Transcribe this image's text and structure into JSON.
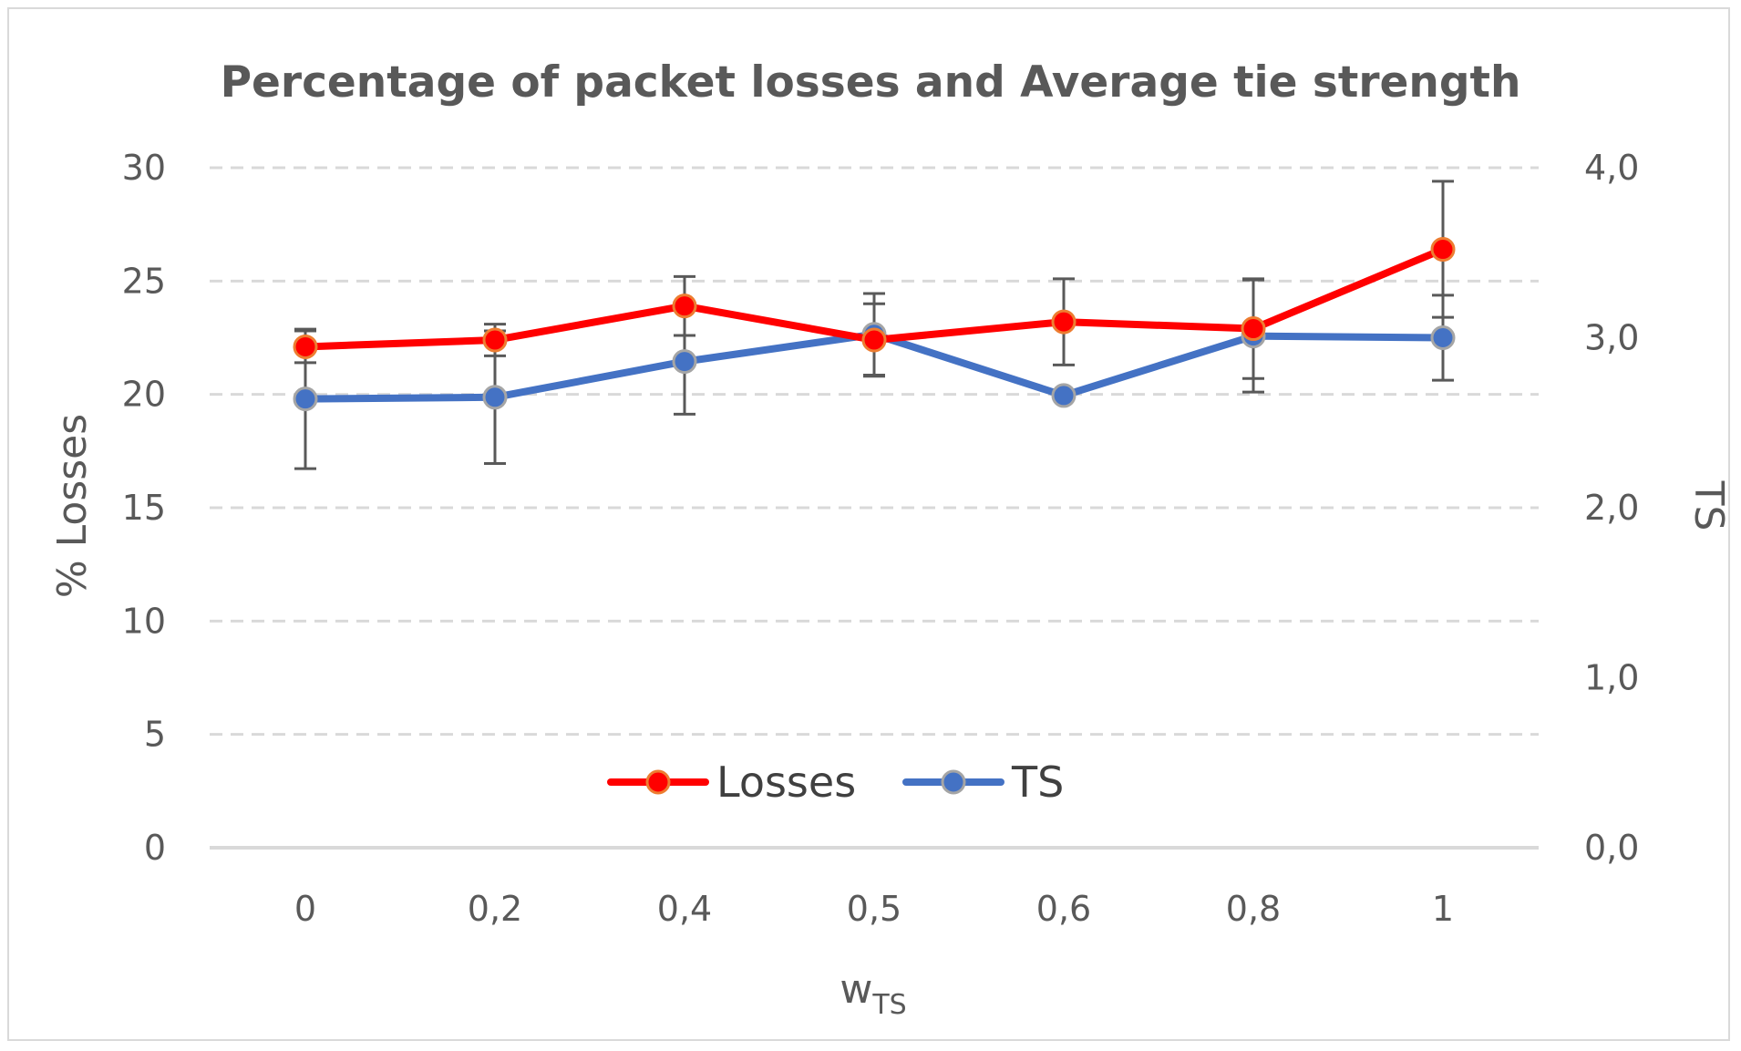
{
  "chart_data": {
    "type": "line",
    "title": "Percentage of packet losses and Average tie strength",
    "xlabel": "w",
    "xlabel_subscript": "TS",
    "ylabel": "% Losses",
    "y2label": "TS",
    "categories": [
      "0",
      "0,2",
      "0,4",
      "0,5",
      "0,6",
      "0,8",
      "1"
    ],
    "ylim": [
      0,
      30
    ],
    "y_ticks": [
      "0",
      "5",
      "10",
      "15",
      "20",
      "25",
      "30"
    ],
    "y2lim": [
      0,
      4
    ],
    "y2_ticks": [
      "0,0",
      "1,0",
      "2,0",
      "3,0",
      "4,0"
    ],
    "grid": true,
    "legend_position": "bottom-center",
    "series": [
      {
        "name": "Losses",
        "axis": "left",
        "color": "#ff0000",
        "marker_edge": "#ed7d31",
        "values": [
          22.1,
          22.4,
          23.9,
          22.4,
          23.2,
          22.9,
          26.4
        ],
        "error": [
          0.7,
          0.7,
          1.3,
          1.6,
          1.9,
          2.2,
          3.0
        ]
      },
      {
        "name": "TS",
        "axis": "right",
        "color": "#4472c4",
        "marker_edge": "#a5a5a5",
        "values": [
          2.64,
          2.65,
          2.86,
          3.02,
          2.66,
          3.01,
          3.0
        ],
        "error": [
          0.41,
          0.39,
          0.31,
          0.24,
          0.0,
          0.33,
          0.25
        ]
      }
    ]
  }
}
